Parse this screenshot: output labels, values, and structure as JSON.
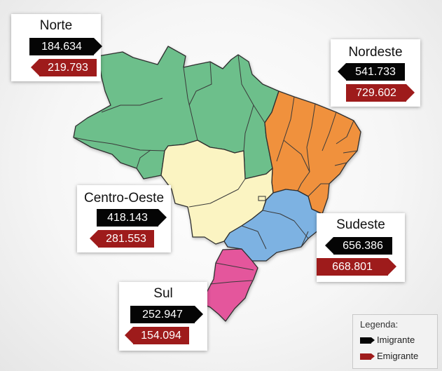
{
  "regions": {
    "norte": {
      "name": "Norte",
      "imigrante": "184.634",
      "emigrante": "219.793",
      "color": "#6dbf8b"
    },
    "nordeste": {
      "name": "Nordeste",
      "imigrante": "541.733",
      "emigrante": "729.602",
      "color": "#f0913e"
    },
    "centro_oeste": {
      "name": "Centro-Oeste",
      "imigrante": "418.143",
      "emigrante": "281.553",
      "color": "#fbf4c2"
    },
    "sudeste": {
      "name": "Sudeste",
      "imigrante": "656.386",
      "emigrante": "668.801",
      "color": "#7db2e2"
    },
    "sul": {
      "name": "Sul",
      "imigrante": "252.947",
      "emigrante": "154.094",
      "color": "#e4569c"
    }
  },
  "legend": {
    "title": "Legenda:",
    "imigrante_label": "Imigrante",
    "emigrante_label": "Emigrante",
    "imigrante_color": "#050505",
    "emigrante_color": "#9e1b1b"
  }
}
